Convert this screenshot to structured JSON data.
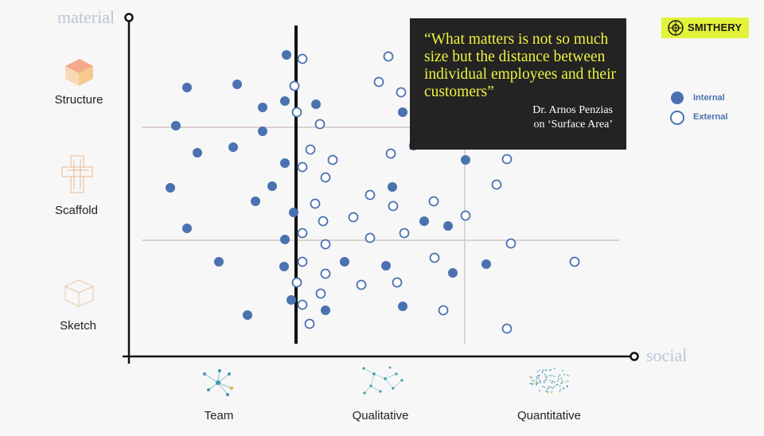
{
  "axes": {
    "y_label": "material",
    "x_label": "social"
  },
  "rows": {
    "structure": "Structure",
    "scaffold": "Scaffold",
    "sketch": "Sketch"
  },
  "columns": {
    "team": "Team",
    "qualitative": "Qualitative",
    "quantitative": "Quantitative"
  },
  "quote": {
    "text": "“What matters is not so much size but the distance between individual employees and their customers”",
    "author_line1": "Dr. Arnos Penzias",
    "author_line2": "on ‘Surface Area’"
  },
  "logo": {
    "text": "SMITHERY",
    "icon": "smithery-emblem-icon"
  },
  "legend": {
    "internal": "Internal",
    "external": "External"
  },
  "colors": {
    "internal": "#4a72b0",
    "external": "#4a72b0",
    "quote_bg": "#232323",
    "quote_text": "#ecf33e",
    "logo_bg": "#e3f33a"
  },
  "points": {
    "internal": [
      [
        360,
        69
      ],
      [
        235,
        110
      ],
      [
        298,
        106
      ],
      [
        330,
        135
      ],
      [
        358,
        127
      ],
      [
        397,
        131
      ],
      [
        506,
        141
      ],
      [
        221,
        158
      ],
      [
        330,
        165
      ],
      [
        293,
        185
      ],
      [
        248,
        192
      ],
      [
        520,
        183
      ],
      [
        358,
        205
      ],
      [
        585,
        201
      ],
      [
        214,
        236
      ],
      [
        342,
        234
      ],
      [
        493,
        235
      ],
      [
        321,
        253
      ],
      [
        369,
        267
      ],
      [
        533,
        278
      ],
      [
        563,
        284
      ],
      [
        235,
        287
      ],
      [
        358,
        301
      ],
      [
        275,
        329
      ],
      [
        357,
        335
      ],
      [
        433,
        329
      ],
      [
        485,
        334
      ],
      [
        611,
        332
      ],
      [
        569,
        343
      ],
      [
        366,
        377
      ],
      [
        409,
        390
      ],
      [
        506,
        385
      ],
      [
        311,
        396
      ]
    ],
    "external": [
      [
        380,
        74
      ],
      [
        488,
        71
      ],
      [
        476,
        103
      ],
      [
        370,
        108
      ],
      [
        504,
        116
      ],
      [
        373,
        141
      ],
      [
        402,
        156
      ],
      [
        390,
        188
      ],
      [
        491,
        193
      ],
      [
        418,
        201
      ],
      [
        637,
        200
      ],
      [
        380,
        210
      ],
      [
        409,
        223
      ],
      [
        624,
        232
      ],
      [
        465,
        245
      ],
      [
        545,
        253
      ],
      [
        396,
        256
      ],
      [
        494,
        259
      ],
      [
        444,
        273
      ],
      [
        406,
        278
      ],
      [
        585,
        271
      ],
      [
        380,
        293
      ],
      [
        508,
        293
      ],
      [
        465,
        299
      ],
      [
        409,
        307
      ],
      [
        642,
        306
      ],
      [
        546,
        324
      ],
      [
        380,
        329
      ],
      [
        722,
        329
      ],
      [
        409,
        344
      ],
      [
        499,
        355
      ],
      [
        454,
        358
      ],
      [
        373,
        355
      ],
      [
        403,
        369
      ],
      [
        380,
        383
      ],
      [
        557,
        390
      ],
      [
        389,
        407
      ],
      [
        637,
        413
      ]
    ]
  }
}
